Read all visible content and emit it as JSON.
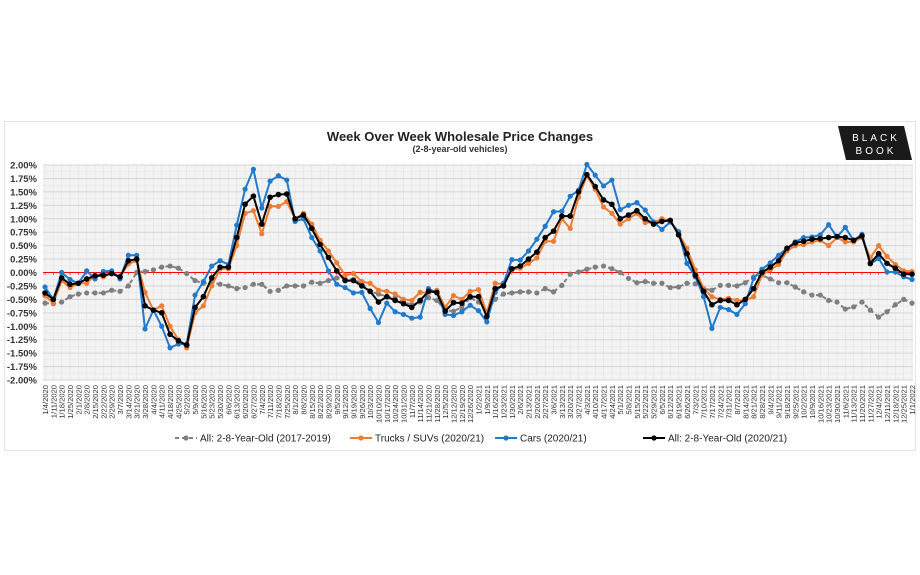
{
  "chart_data": {
    "type": "line",
    "title": "Week Over Week Wholesale Price Changes",
    "subtitle": "(2-8-year-old vehicles)",
    "logo_text": [
      "BLACK",
      "BOOK"
    ],
    "ylim": [
      -2.0,
      2.0
    ],
    "yticks": [
      "2.00%",
      "1.75%",
      "1.50%",
      "1.25%",
      "1.00%",
      "0.75%",
      "0.50%",
      "0.25%",
      "0.00%",
      "-0.25%",
      "-0.50%",
      "-0.75%",
      "-1.00%",
      "-1.25%",
      "-1.50%",
      "-1.75%",
      "-2.00%"
    ],
    "grid": true,
    "zero_line_color": "#ff0000",
    "legend_position": "bottom",
    "categories": [
      "1/4/2020",
      "1/11/2020",
      "1/18/2020",
      "1/25/2020",
      "2/1/2020",
      "2/8/2020",
      "2/15/2020",
      "2/22/2020",
      "2/29/2020",
      "3/7/2020",
      "3/14/2020",
      "3/21/2020",
      "3/28/2020",
      "4/4/2020",
      "4/11/2020",
      "4/18/2020",
      "4/25/2020",
      "5/2/2020",
      "5/9/2020",
      "5/16/2020",
      "5/23/2020",
      "5/30/2020",
      "6/6/2020",
      "6/13/2020",
      "6/20/2020",
      "6/27/2020",
      "7/4/2020",
      "7/11/2020",
      "7/18/2020",
      "7/25/2020",
      "8/1/2020",
      "8/8/2020",
      "8/15/2020",
      "8/22/2020",
      "8/29/2020",
      "9/5/2020",
      "9/12/2020",
      "9/19/2020",
      "9/26/2020",
      "10/3/2020",
      "10/10/2020",
      "10/17/2020",
      "10/24/2020",
      "10/31/2020",
      "11/7/2020",
      "11/14/2020",
      "11/21/2020",
      "11/28/2020",
      "12/5/2020",
      "12/12/2020",
      "12/19/2020",
      "12/26/2020",
      "1/2/2021",
      "1/9/2021",
      "1/16/2021",
      "1/23/2021",
      "1/30/2021",
      "2/6/2021",
      "2/13/2021",
      "2/20/2021",
      "2/27/2021",
      "3/6/2021",
      "3/13/2021",
      "3/20/2021",
      "3/27/2021",
      "4/3/2021",
      "4/10/2021",
      "4/17/2021",
      "4/24/2021",
      "5/1/2021",
      "5/8/2021",
      "5/15/2021",
      "5/22/2021",
      "5/29/2021",
      "6/5/2021",
      "6/12/2021",
      "6/19/2021",
      "6/26/2021",
      "7/3/2021",
      "7/10/2021",
      "7/17/2021",
      "7/24/2021",
      "7/31/2021",
      "8/7/2021",
      "8/14/2021",
      "8/21/2021",
      "8/28/2021",
      "9/4/2021",
      "9/11/2021",
      "9/18/2021",
      "9/25/2021",
      "10/2/2021",
      "10/9/2021",
      "10/16/2021",
      "10/23/2021",
      "10/30/2021",
      "11/6/2021",
      "11/13/2021",
      "11/20/2021",
      "11/27/2021",
      "12/4/2021",
      "12/11/2021",
      "12/18/2021",
      "12/25/2021",
      "1/1/2022"
    ],
    "series": [
      {
        "name": "All: 2-8-Year-Old (2017-2019)",
        "color": "#7f7f7f",
        "dashed": true,
        "values": [
          -0.57,
          -0.58,
          -0.55,
          -0.45,
          -0.4,
          -0.38,
          -0.38,
          -0.38,
          -0.33,
          -0.35,
          -0.25,
          0.0,
          0.02,
          0.05,
          0.1,
          0.12,
          0.08,
          -0.02,
          -0.15,
          -0.2,
          -0.18,
          -0.22,
          -0.25,
          -0.3,
          -0.28,
          -0.22,
          -0.22,
          -0.35,
          -0.33,
          -0.25,
          -0.25,
          -0.25,
          -0.18,
          -0.2,
          -0.15,
          -0.1,
          -0.12,
          -0.13,
          -0.2,
          -0.35,
          -0.4,
          -0.45,
          -0.47,
          -0.55,
          -0.6,
          -0.55,
          -0.47,
          -0.52,
          -0.7,
          -0.72,
          -0.65,
          -0.47,
          -0.55,
          -0.73,
          -0.5,
          -0.4,
          -0.38,
          -0.36,
          -0.36,
          -0.38,
          -0.3,
          -0.36,
          -0.24,
          -0.03,
          0.01,
          0.06,
          0.1,
          0.12,
          0.07,
          0.0,
          -0.11,
          -0.19,
          -0.17,
          -0.2,
          -0.2,
          -0.28,
          -0.27,
          -0.2,
          -0.21,
          -0.3,
          -0.33,
          -0.24,
          -0.24,
          -0.25,
          -0.19,
          -0.08,
          -0.05,
          -0.12,
          -0.19,
          -0.19,
          -0.27,
          -0.36,
          -0.42,
          -0.42,
          -0.52,
          -0.55,
          -0.68,
          -0.64,
          -0.55,
          -0.7,
          -0.83,
          -0.73,
          -0.6,
          -0.5,
          -0.57
        ]
      },
      {
        "name": "Trucks / SUVs (2020/21)",
        "color": "#ed7d31",
        "dashed": false,
        "values": [
          -0.43,
          -0.57,
          -0.15,
          -0.28,
          -0.2,
          -0.2,
          -0.05,
          -0.08,
          -0.02,
          -0.08,
          0.16,
          0.22,
          -0.37,
          -0.7,
          -0.62,
          -1.0,
          -1.25,
          -1.4,
          -0.75,
          -0.62,
          -0.25,
          0.07,
          0.07,
          0.5,
          1.1,
          1.15,
          0.72,
          1.23,
          1.23,
          1.32,
          1.0,
          1.1,
          0.9,
          0.6,
          0.4,
          0.18,
          -0.05,
          -0.02,
          -0.17,
          -0.2,
          -0.33,
          -0.35,
          -0.4,
          -0.5,
          -0.52,
          -0.37,
          -0.38,
          -0.33,
          -0.65,
          -0.43,
          -0.5,
          -0.35,
          -0.32,
          -0.75,
          -0.2,
          -0.22,
          0.05,
          0.08,
          0.17,
          0.27,
          0.58,
          0.58,
          1.0,
          0.82,
          1.4,
          1.8,
          1.55,
          1.22,
          1.1,
          0.9,
          1.0,
          1.1,
          0.93,
          0.93,
          1.0,
          0.97,
          0.72,
          0.45,
          0.05,
          -0.3,
          -0.45,
          -0.5,
          -0.48,
          -0.52,
          -0.52,
          -0.45,
          -0.05,
          0.05,
          0.15,
          0.4,
          0.5,
          0.52,
          0.57,
          0.6,
          0.5,
          0.65,
          0.57,
          0.57,
          0.65,
          0.27,
          0.5,
          0.3,
          0.15,
          0.03,
          0.02
        ]
      },
      {
        "name": "Cars (2020/21)",
        "color": "#1f7acb",
        "dashed": false,
        "values": [
          -0.27,
          -0.5,
          0.0,
          -0.13,
          -0.2,
          0.03,
          -0.12,
          0.02,
          0.03,
          -0.12,
          0.32,
          0.32,
          -1.05,
          -0.7,
          -1.0,
          -1.4,
          -1.33,
          -1.33,
          -0.42,
          -0.17,
          0.12,
          0.22,
          0.15,
          0.88,
          1.55,
          1.92,
          1.2,
          1.7,
          1.8,
          1.72,
          0.95,
          1.0,
          0.65,
          0.4,
          0.03,
          -0.22,
          -0.28,
          -0.38,
          -0.37,
          -0.67,
          -0.93,
          -0.57,
          -0.73,
          -0.78,
          -0.85,
          -0.83,
          -0.3,
          -0.38,
          -0.78,
          -0.8,
          -0.73,
          -0.61,
          -0.71,
          -0.92,
          -0.37,
          -0.2,
          0.24,
          0.23,
          0.4,
          0.62,
          0.86,
          1.13,
          1.14,
          1.42,
          1.53,
          2.01,
          1.81,
          1.61,
          1.72,
          1.17,
          1.25,
          1.3,
          1.16,
          0.94,
          0.8,
          0.94,
          0.76,
          0.17,
          -0.08,
          -0.45,
          -1.04,
          -0.65,
          -0.69,
          -0.78,
          -0.58,
          -0.11,
          0.06,
          0.18,
          0.32,
          0.45,
          0.57,
          0.65,
          0.66,
          0.7,
          0.89,
          0.66,
          0.84,
          0.6,
          0.71,
          0.16,
          0.26,
          0.01,
          0.01,
          -0.08,
          -0.13
        ]
      },
      {
        "name": "All: 2-8-Year-Old (2020/21)",
        "color": "#000000",
        "dashed": false,
        "values": [
          -0.38,
          -0.5,
          -0.1,
          -0.22,
          -0.2,
          -0.12,
          -0.06,
          -0.05,
          -0.02,
          -0.08,
          0.22,
          0.25,
          -0.62,
          -0.7,
          -0.75,
          -1.15,
          -1.27,
          -1.35,
          -0.65,
          -0.45,
          -0.1,
          0.1,
          0.1,
          0.65,
          1.27,
          1.42,
          0.9,
          1.4,
          1.45,
          1.46,
          1.0,
          1.07,
          0.82,
          0.52,
          0.28,
          0.03,
          -0.15,
          -0.15,
          -0.25,
          -0.35,
          -0.55,
          -0.45,
          -0.52,
          -0.58,
          -0.65,
          -0.52,
          -0.35,
          -0.37,
          -0.72,
          -0.56,
          -0.57,
          -0.45,
          -0.45,
          -0.82,
          -0.3,
          -0.25,
          0.07,
          0.12,
          0.25,
          0.38,
          0.65,
          0.77,
          1.05,
          1.05,
          1.5,
          1.82,
          1.6,
          1.35,
          1.27,
          1.0,
          1.07,
          1.15,
          1.0,
          0.9,
          0.95,
          0.97,
          0.7,
          0.35,
          -0.05,
          -0.35,
          -0.6,
          -0.52,
          -0.52,
          -0.6,
          -0.5,
          -0.3,
          0.0,
          0.1,
          0.22,
          0.45,
          0.55,
          0.58,
          0.62,
          0.63,
          0.65,
          0.67,
          0.65,
          0.6,
          0.68,
          0.17,
          0.35,
          0.17,
          0.08,
          -0.03,
          -0.03
        ]
      }
    ]
  }
}
